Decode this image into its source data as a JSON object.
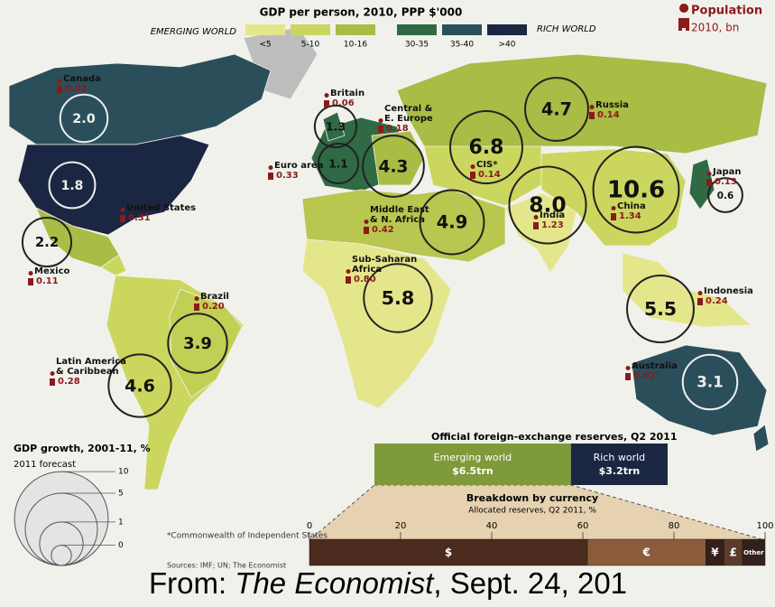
{
  "legend": {
    "title": "GDP per person, 2010, PPP $'000",
    "emerging": "EMERGING WORLD",
    "rich": "RICH WORLD",
    "bins": [
      {
        "label": "<5",
        "color": "#e3e68b"
      },
      {
        "label": "5-10",
        "color": "#cbd65e"
      },
      {
        "label": "10-16",
        "color": "#a9bc45"
      },
      {
        "label": "30-35",
        "color": "#2f6a45"
      },
      {
        "label": "35-40",
        "color": "#2b4f5a"
      },
      {
        "label": ">40",
        "color": "#1b2742"
      }
    ],
    "population_title": "Population",
    "population_sub": "2010, bn"
  },
  "regions": [
    {
      "name": [
        "Canada"
      ],
      "growth": "2.0",
      "population": "0.03"
    },
    {
      "name": [
        "United States"
      ],
      "growth": "1.8",
      "population": "0.31"
    },
    {
      "name": [
        "Mexico"
      ],
      "growth": "2.2",
      "population": "0.11"
    },
    {
      "name": [
        "Brazil"
      ],
      "growth": "3.9",
      "population": "0.20"
    },
    {
      "name": [
        "Latin America",
        "& Caribbean"
      ],
      "growth": "4.6",
      "population": "0.28"
    },
    {
      "name": [
        "Britain"
      ],
      "growth": "1.3",
      "population": "0.06"
    },
    {
      "name": [
        "Euro area"
      ],
      "growth": "1.1",
      "population": "0.33"
    },
    {
      "name": [
        "Central &",
        "E. Europe"
      ],
      "growth": "4.3",
      "population": "0.18"
    },
    {
      "name": [
        "CIS*"
      ],
      "growth": "6.8",
      "population": "0.14"
    },
    {
      "name": [
        "Russia"
      ],
      "growth": "4.7",
      "population": "0.14"
    },
    {
      "name": [
        "Middle East",
        "& N. Africa"
      ],
      "growth": "4.9",
      "population": "0.42"
    },
    {
      "name": [
        "India"
      ],
      "growth": "8.0",
      "population": "1.23"
    },
    {
      "name": [
        "China"
      ],
      "growth": "10.6",
      "population": "1.34"
    },
    {
      "name": [
        "Japan"
      ],
      "growth": "0.6",
      "population": "0.13"
    },
    {
      "name": [
        "Sub-Saharan",
        "Africa"
      ],
      "growth": "5.8",
      "population": "0.80"
    },
    {
      "name": [
        "Indonesia"
      ],
      "growth": "5.5",
      "population": "0.24"
    },
    {
      "name": [
        "Australia"
      ],
      "growth": "3.1",
      "population": "0.02"
    }
  ],
  "growth_legend": {
    "title": "GDP growth, 2001-11, %",
    "subtitle": "2011 forecast",
    "ticks": [
      10,
      5,
      1,
      0
    ]
  },
  "reserves": {
    "title": "Official foreign-exchange reserves, Q2 2011",
    "categories": [
      "Emerging world",
      "Rich world"
    ],
    "values": [
      6.5,
      3.2
    ],
    "value_labels": [
      "$6.5trn",
      "$3.2trn"
    ],
    "colors": [
      "#7f9a3a",
      "#1b2742"
    ]
  },
  "breakdown": {
    "title": "Breakdown by currency",
    "subtitle": "Allocated reserves, Q2 2011, %",
    "xlim": [
      0,
      100
    ],
    "xticks": [
      0,
      20,
      40,
      60,
      80,
      100
    ],
    "categories": [
      "$",
      "€",
      "¥",
      "£",
      "Other"
    ],
    "values": [
      61,
      26,
      4,
      4,
      5
    ],
    "colors": [
      "#4a2b1d",
      "#8a5c3c",
      "#33201a",
      "#5b3c2b",
      "#33201a"
    ]
  },
  "footnote": "*Commonwealth of Independent States",
  "sources": "Sources: IMF; UN; The Economist",
  "caption": [
    "From: ",
    "The Economist",
    ", Sept. 24, 201"
  ]
}
